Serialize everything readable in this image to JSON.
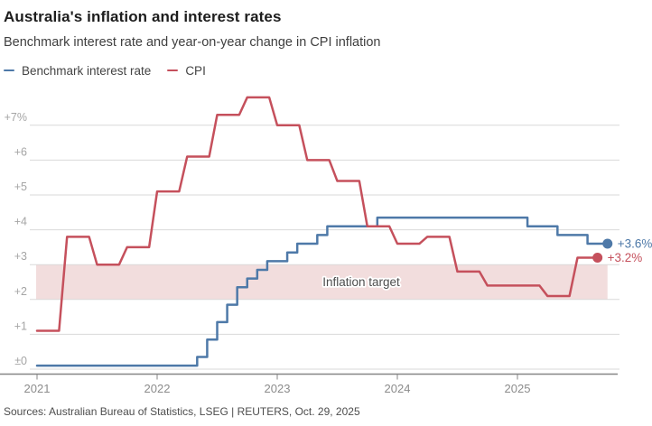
{
  "header": {
    "title": "Australia's inflation and interest rates",
    "subtitle": "Benchmark interest rate and year-on-year change in CPI inflation"
  },
  "legend": {
    "items": [
      {
        "label": "Benchmark interest rate",
        "color": "#4e79a8"
      },
      {
        "label": "CPI",
        "color": "#c5505c"
      }
    ]
  },
  "footer": {
    "source": "Sources: Australian Bureau of Statistics, LSEG | REUTERS, Oct. 29, 2025"
  },
  "chart_data": {
    "type": "line",
    "title": "Australia's inflation and interest rates",
    "subtitle": "Benchmark interest rate and year-on-year change in CPI inflation",
    "y_axis": {
      "unit": "%",
      "min": 0,
      "max": 7.8,
      "tick_values": [
        0,
        1,
        2,
        3,
        4,
        5,
        6,
        7
      ],
      "tick_labels": [
        "±0",
        "+1",
        "+2",
        "+3",
        "+4",
        "+5",
        "+6",
        "+7%"
      ],
      "grid": true
    },
    "x_axis": {
      "start": "Jan 2021",
      "end": "Oct 2025",
      "tick_labels": [
        "2021",
        "2022",
        "2023",
        "2024",
        "2025"
      ]
    },
    "target_band": {
      "from": 2,
      "to": 3,
      "label": "Inflation target",
      "fill": "#f2dddd",
      "label_color": "#4d4d4d"
    },
    "series": [
      {
        "name": "Benchmark interest rate",
        "color": "#4e79a8",
        "style": "step",
        "end_label": "+3.6%",
        "end_month": 57,
        "points_month_value": [
          [
            0,
            0.1
          ],
          [
            16,
            0.35
          ],
          [
            17,
            0.85
          ],
          [
            18,
            1.35
          ],
          [
            19,
            1.85
          ],
          [
            20,
            2.35
          ],
          [
            21,
            2.6
          ],
          [
            22,
            2.85
          ],
          [
            23,
            3.1
          ],
          [
            25,
            3.35
          ],
          [
            26,
            3.6
          ],
          [
            28,
            3.85
          ],
          [
            29,
            4.1
          ],
          [
            34,
            4.35
          ],
          [
            49,
            4.1
          ],
          [
            52,
            3.85
          ],
          [
            55,
            3.6
          ]
        ]
      },
      {
        "name": "CPI",
        "color": "#c5505c",
        "style": "quarterly-step",
        "end_label": "+3.2%",
        "end_month": 56,
        "quarters": [
          "Q1 2021",
          "Q2 2021",
          "Q3 2021",
          "Q4 2021",
          "Q1 2022",
          "Q2 2022",
          "Q3 2022",
          "Q4 2022",
          "Q1 2023",
          "Q2 2023",
          "Q3 2023",
          "Q4 2023",
          "Q1 2024",
          "Q2 2024",
          "Q3 2024",
          "Q4 2024",
          "Q1 2025",
          "Q2 2025",
          "Q3 2025"
        ],
        "values": [
          1.1,
          3.8,
          3.0,
          3.5,
          5.1,
          6.1,
          7.3,
          7.8,
          7.0,
          6.0,
          5.4,
          4.1,
          3.6,
          3.8,
          2.8,
          2.4,
          2.4,
          2.1,
          3.2
        ]
      }
    ],
    "grid_color": "#d9d9d9",
    "axis_color": "#858585",
    "y_label_color": "#a5a5a5",
    "x_label_color": "#8c8c8c"
  }
}
